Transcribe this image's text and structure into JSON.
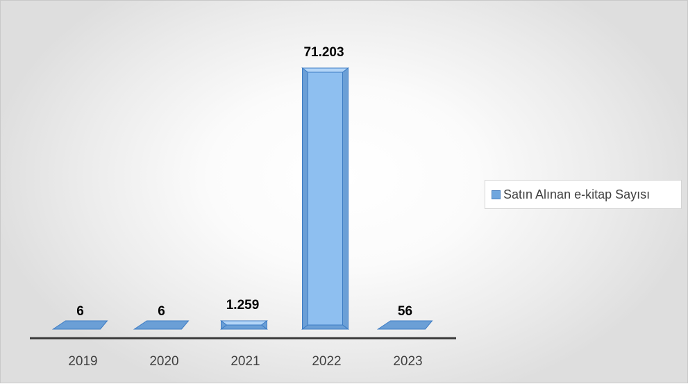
{
  "chart_data": {
    "type": "bar",
    "categories": [
      "2019",
      "2020",
      "2021",
      "2022",
      "2023"
    ],
    "series": [
      {
        "name": "Satın Alınan e-kitap Sayısı",
        "values": [
          6,
          6,
          1259,
          71203,
          56
        ]
      }
    ],
    "data_labels": [
      "6",
      "6",
      "1.259",
      "71.203",
      "56"
    ],
    "ylim": [
      0,
      71203
    ],
    "grid": false,
    "legend": "right",
    "colors": {
      "bar_front": "#8ebff0",
      "bar_side": "#6b9fd6",
      "bar_top": "#b3d5f7",
      "bar_edge": "#3d7cc4",
      "axis": "#3a3a3a"
    }
  }
}
